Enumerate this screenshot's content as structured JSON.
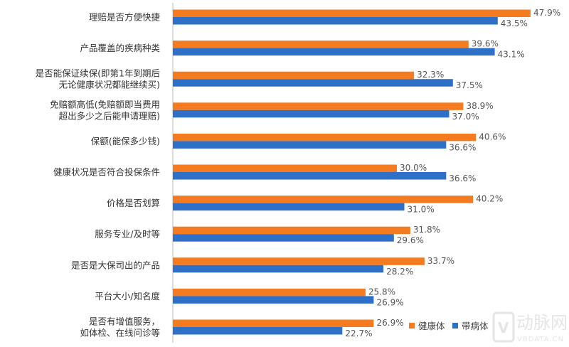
{
  "chart_data": {
    "type": "bar",
    "orientation": "horizontal",
    "categories": [
      [
        "理赔是否方便快捷"
      ],
      [
        "产品覆盖的疾病种类"
      ],
      [
        "是否能保证续保(即第1年到期后",
        "无论健康状况都能继续买)"
      ],
      [
        "免赔额高低(免赔额即当费用",
        "超出多少之后能申请理赔)"
      ],
      [
        "保额(能保多少钱)"
      ],
      [
        "健康状况是否符合投保条件"
      ],
      [
        "价格是否划算"
      ],
      [
        "服务专业/及时等"
      ],
      [
        "是否是大保司出的产品"
      ],
      [
        "平台大小/知名度"
      ],
      [
        "是否有增值服务，",
        "如体检、在线问诊等"
      ]
    ],
    "series": [
      {
        "name": "健康体",
        "color": "#F47B20",
        "values": [
          47.9,
          39.6,
          32.3,
          38.9,
          40.6,
          30.0,
          40.2,
          31.8,
          33.7,
          25.8,
          26.9
        ]
      },
      {
        "name": "带病体",
        "color": "#2E6FC7",
        "values": [
          43.5,
          43.1,
          37.5,
          37.0,
          36.6,
          36.6,
          31.0,
          29.6,
          28.2,
          26.9,
          22.7
        ]
      }
    ],
    "value_format": "%",
    "xlim": [
      0,
      48
    ],
    "grid": false,
    "legend": "bottom-right"
  },
  "watermark": {
    "text": "动脉网",
    "subtext": "VBDATA.CN"
  }
}
